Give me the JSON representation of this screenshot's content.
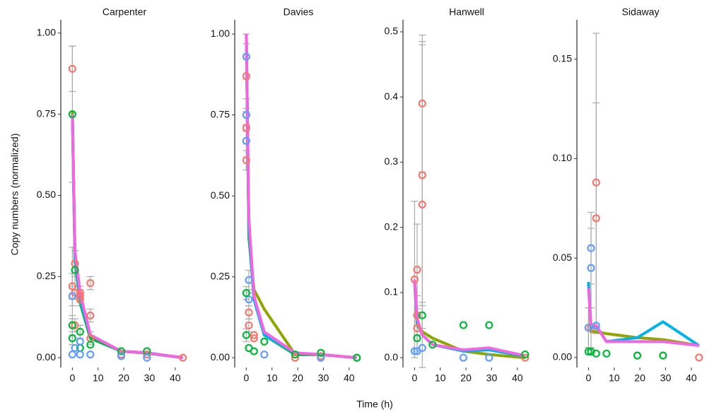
{
  "y_label": "Copy numbers (normalized)",
  "x_label": "Time (h)",
  "chart_data": [
    {
      "type": "line",
      "title": "Carpenter",
      "xlim": [
        -4.5,
        45
      ],
      "xticks": [
        0,
        10,
        20,
        30,
        40
      ],
      "ylim": [
        -0.03,
        1.03
      ],
      "yticks": [
        {
          "value": 0,
          "label": "0.00"
        },
        {
          "value": 0.25,
          "label": "0.25"
        },
        {
          "value": 0.5,
          "label": "0.50"
        },
        {
          "value": 0.75,
          "label": "0.75"
        },
        {
          "value": 1,
          "label": "1.00"
        }
      ],
      "series": [
        {
          "color": "#8fa500",
          "x": [
            0,
            1,
            3,
            7,
            19,
            29,
            43
          ],
          "values": [
            0.76,
            0.32,
            0.18,
            0.07,
            0.02,
            0.015,
            0
          ]
        },
        {
          "color": "#00b33c",
          "x": [
            0,
            1,
            3,
            7,
            19,
            29,
            43
          ],
          "values": [
            0.75,
            0.3,
            0.17,
            0.06,
            0.02,
            0.014,
            0
          ]
        },
        {
          "color": "#00b4e6",
          "x": [
            0,
            1,
            3,
            7,
            19,
            29,
            43
          ],
          "values": [
            0.74,
            0.31,
            0.18,
            0.07,
            0.02,
            0.015,
            0
          ]
        },
        {
          "color": "#f564e3",
          "x": [
            0,
            1,
            3,
            7,
            19,
            29,
            43
          ],
          "values": [
            0.75,
            0.33,
            0.2,
            0.07,
            0.02,
            0.015,
            0
          ]
        }
      ],
      "points": [
        {
          "color": "#f8766d",
          "x": [
            0,
            0,
            0,
            0,
            1,
            1,
            1,
            3,
            3,
            3,
            7,
            7,
            7,
            19,
            29,
            43
          ],
          "values": [
            0.89,
            0.22,
            0.19,
            0.1,
            0.29,
            0.2,
            0.1,
            0.19,
            0.2,
            0.18,
            0.23,
            0.13,
            0.06,
            0.01,
            0.01,
            0
          ],
          "errors": [
            0.07,
            0.04,
            0.03,
            0.02,
            0.04,
            0.02,
            0.02,
            0.02,
            0.02,
            0.02,
            0.02,
            0.02,
            0.02,
            null,
            null,
            null
          ]
        },
        {
          "color": "#00ba38",
          "x": [
            0,
            0,
            0,
            1,
            3,
            3,
            7,
            19,
            29
          ],
          "values": [
            0.75,
            0.1,
            0.06,
            0.27,
            0.08,
            0.03,
            0.04,
            0.02,
            0.02
          ],
          "errors": [
            0.21,
            0.03,
            0.02,
            0.06,
            0.02,
            null,
            null,
            null,
            null
          ]
        },
        {
          "color": "#619cff",
          "x": [
            0,
            0,
            1,
            3,
            3,
            7,
            19,
            29
          ],
          "values": [
            0.01,
            0.19,
            0.03,
            0.05,
            0.01,
            0.01,
            0.005,
            0
          ],
          "errors": [
            null,
            0.15,
            null,
            null,
            null,
            null,
            null,
            null
          ]
        }
      ]
    },
    {
      "type": "line",
      "title": "Davies",
      "xlim": [
        -4.5,
        45
      ],
      "xticks": [
        0,
        10,
        20,
        30,
        40
      ],
      "ylim": [
        -0.03,
        1.033
      ],
      "yticks": [
        {
          "value": 0,
          "label": "0.00"
        },
        {
          "value": 0.25,
          "label": "0.25"
        },
        {
          "value": 0.5,
          "label": "0.50"
        },
        {
          "value": 0.75,
          "label": "0.75"
        },
        {
          "value": 1,
          "label": "1.00"
        }
      ],
      "series": [
        {
          "color": "#8fa500",
          "x": [
            0,
            1,
            3,
            7,
            19,
            29,
            43
          ],
          "values": [
            1.0,
            0.37,
            0.21,
            0.15,
            0.01,
            0.01,
            0
          ]
        },
        {
          "color": "#00b33c",
          "x": [
            0,
            1,
            3,
            7,
            19,
            29,
            43
          ],
          "values": [
            1.0,
            0.38,
            0.18,
            0.07,
            0.01,
            0.01,
            0
          ]
        },
        {
          "color": "#00b4e6",
          "x": [
            0,
            1,
            3,
            7,
            19,
            29,
            43
          ],
          "values": [
            1.0,
            0.4,
            0.18,
            0.07,
            0.015,
            0.01,
            0
          ]
        },
        {
          "color": "#f564e3",
          "x": [
            0,
            1,
            3,
            7,
            19,
            29,
            43
          ],
          "values": [
            1.0,
            0.43,
            0.19,
            0.08,
            0.015,
            0.01,
            0
          ]
        }
      ],
      "points": [
        {
          "color": "#f8766d",
          "x": [
            0,
            0,
            0,
            1,
            1,
            3,
            3,
            19,
            29,
            43
          ],
          "values": [
            0.87,
            0.71,
            0.61,
            0.14,
            0.1,
            0.07,
            0.06,
            0,
            0.005,
            0
          ],
          "errors": [
            0.1,
            0.05,
            0.03,
            0.02,
            0.02,
            null,
            null,
            null,
            null,
            null
          ]
        },
        {
          "color": "#619cff",
          "x": [
            0,
            0,
            0,
            1,
            1,
            7,
            29
          ],
          "values": [
            0.93,
            0.75,
            0.67,
            0.24,
            0.18,
            0.01,
            0
          ],
          "errors": [
            0.07,
            0.05,
            0.05,
            0.03,
            0.02,
            null,
            null
          ]
        },
        {
          "color": "#00ba38",
          "x": [
            0,
            0,
            1,
            3,
            7,
            19,
            29,
            43
          ],
          "values": [
            0.2,
            0.07,
            0.03,
            0.02,
            0.05,
            0.01,
            0.015,
            0
          ],
          "errors": [
            0.02,
            0.02,
            null,
            null,
            null,
            null,
            null,
            null
          ]
        }
      ]
    },
    {
      "type": "line",
      "title": "Hanwell",
      "xlim": [
        -4.5,
        45
      ],
      "xticks": [
        0,
        10,
        20,
        30,
        40
      ],
      "ylim": [
        -0.015,
        0.513
      ],
      "yticks": [
        {
          "value": 0,
          "label": "0.0"
        },
        0.1,
        0.2,
        0.3,
        0.4,
        0.5
      ],
      "series": [
        {
          "color": "#8fa500",
          "x": [
            0,
            1,
            3,
            7,
            19,
            29,
            43
          ],
          "values": [
            0.12,
            0.05,
            0.04,
            0.03,
            0.01,
            0.005,
            0
          ]
        },
        {
          "color": "#00b4e6",
          "x": [
            0,
            1,
            3,
            7,
            19,
            29,
            43
          ],
          "values": [
            0.115,
            0.055,
            0.035,
            0.02,
            0.01,
            0.012,
            0.002
          ]
        },
        {
          "color": "#f564e3",
          "x": [
            0,
            1,
            3,
            7,
            19,
            29,
            43
          ],
          "values": [
            0.12,
            0.06,
            0.035,
            0.02,
            0.012,
            0.015,
            0.003
          ]
        }
      ],
      "points": [
        {
          "color": "#f8766d",
          "x": [
            0,
            1,
            1,
            1,
            3,
            3,
            3,
            43
          ],
          "values": [
            0.12,
            0.135,
            0.045,
            0.065,
            0.39,
            0.28,
            0.235,
            0
          ],
          "errors": [
            0.12,
            0.07,
            0.03,
            0.03,
            0.105,
            0.2,
            0.25,
            null
          ]
        },
        {
          "color": "#00ba38",
          "x": [
            1,
            3,
            7,
            19,
            29,
            43
          ],
          "values": [
            0.03,
            0.065,
            0.02,
            0.05,
            0.05,
            0.005
          ],
          "errors": [
            0.02,
            0.02,
            null,
            null,
            null,
            null
          ]
        },
        {
          "color": "#619cff",
          "x": [
            0,
            1,
            3,
            19,
            29
          ],
          "values": [
            0.01,
            0.01,
            0.015,
            0.0,
            0.0
          ],
          "errors": [
            null,
            null,
            null,
            null,
            null
          ]
        }
      ]
    },
    {
      "type": "line",
      "title": "Sidaway",
      "xlim": [
        -4.5,
        45
      ],
      "xticks": [
        0,
        10,
        20,
        30,
        40
      ],
      "ylim": [
        -0.005,
        0.168
      ],
      "yticks": [
        {
          "value": 0,
          "label": "0.00"
        },
        0.05,
        {
          "value": 0.1,
          "label": "0.10"
        },
        0.15
      ],
      "series": [
        {
          "color": "#8fa500",
          "x": [
            0,
            1,
            3,
            7,
            19,
            29,
            43
          ],
          "values": [
            0.038,
            0.013,
            0.013,
            0.012,
            0.01,
            0.009,
            0.006
          ]
        },
        {
          "color": "#00b4e6",
          "x": [
            0,
            1,
            3,
            7,
            19,
            29,
            43
          ],
          "values": [
            0.038,
            0.015,
            0.016,
            0.008,
            0.01,
            0.018,
            0.006
          ]
        },
        {
          "color": "#f564e3",
          "x": [
            0,
            1,
            3,
            7,
            19,
            29,
            43
          ],
          "values": [
            0.035,
            0.016,
            0.016,
            0.008,
            0.008,
            0.008,
            0.006
          ]
        }
      ],
      "points": [
        {
          "color": "#f8766d",
          "x": [
            0,
            1,
            3,
            3,
            19,
            29,
            43
          ],
          "values": [
            0.015,
            0.015,
            0.088,
            0.07,
            0.001,
            0.001,
            0
          ],
          "errors": [
            0.01,
            0.01,
            0.075,
            0.058,
            null,
            null,
            null
          ]
        },
        {
          "color": "#619cff",
          "x": [
            0,
            1,
            1,
            3
          ],
          "values": [
            0.015,
            0.055,
            0.045,
            0.016
          ],
          "errors": [
            0.01,
            0.018,
            0.02,
            null
          ]
        },
        {
          "color": "#00ba38",
          "x": [
            0,
            1,
            3,
            7,
            19,
            29
          ],
          "values": [
            0.003,
            0.003,
            0.002,
            0.002,
            0.001,
            0.001
          ],
          "errors": [
            null,
            null,
            null,
            null,
            null,
            null
          ]
        }
      ]
    }
  ]
}
